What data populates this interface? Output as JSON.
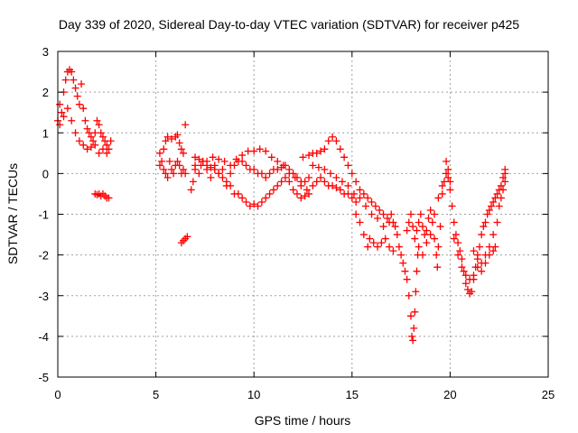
{
  "chart_data": {
    "type": "scatter",
    "title": "Day 339 of 2020, Sidereal Day-to-day VTEC variation (SDTVAR) for receiver p425",
    "xlabel": "GPS time / hours",
    "ylabel": "SDTVAR / TECUs",
    "xlim": [
      0,
      25
    ],
    "ylim": [
      -5,
      3
    ],
    "xticks": [
      0,
      5,
      10,
      15,
      20,
      25
    ],
    "yticks": [
      -5,
      -4,
      -3,
      -2,
      -1,
      0,
      1,
      2,
      3
    ],
    "grid": true,
    "marker": "+",
    "series": [
      {
        "name": "SDTVAR",
        "color": "#ff0000",
        "points": [
          [
            0.0,
            1.3
          ],
          [
            0.1,
            1.7
          ],
          [
            0.2,
            1.5
          ],
          [
            0.3,
            2.0
          ],
          [
            0.4,
            2.3
          ],
          [
            0.5,
            2.5
          ],
          [
            0.6,
            2.55
          ],
          [
            0.7,
            2.5
          ],
          [
            0.8,
            2.3
          ],
          [
            0.9,
            2.1
          ],
          [
            1.0,
            1.9
          ],
          [
            1.1,
            1.7
          ],
          [
            1.2,
            2.2
          ],
          [
            1.3,
            1.6
          ],
          [
            1.4,
            1.3
          ],
          [
            1.5,
            1.1
          ],
          [
            1.6,
            1.0
          ],
          [
            1.7,
            0.9
          ],
          [
            1.8,
            0.8
          ],
          [
            1.9,
            0.7
          ],
          [
            2.0,
            1.3
          ],
          [
            2.1,
            1.2
          ],
          [
            2.2,
            1.0
          ],
          [
            2.3,
            0.9
          ],
          [
            2.4,
            0.8
          ],
          [
            2.5,
            0.7
          ],
          [
            2.6,
            0.6
          ],
          [
            2.7,
            0.8
          ],
          [
            0.1,
            1.2
          ],
          [
            0.3,
            1.4
          ],
          [
            0.5,
            1.6
          ],
          [
            0.7,
            1.3
          ],
          [
            0.9,
            1.0
          ],
          [
            1.1,
            0.8
          ],
          [
            1.3,
            0.7
          ],
          [
            1.5,
            0.6
          ],
          [
            1.7,
            0.65
          ],
          [
            1.9,
            1.0
          ],
          [
            2.1,
            0.5
          ],
          [
            2.3,
            0.6
          ],
          [
            2.5,
            0.5
          ],
          [
            1.9,
            -0.5
          ],
          [
            2.0,
            -0.52
          ],
          [
            2.1,
            -0.5
          ],
          [
            2.2,
            -0.55
          ],
          [
            2.3,
            -0.5
          ],
          [
            2.4,
            -0.55
          ],
          [
            2.5,
            -0.6
          ],
          [
            2.6,
            -0.6
          ],
          [
            5.2,
            0.2
          ],
          [
            5.3,
            0.3
          ],
          [
            5.4,
            0.1
          ],
          [
            5.5,
            0.0
          ],
          [
            5.6,
            -0.1
          ],
          [
            5.7,
            0.3
          ],
          [
            5.8,
            0.1
          ],
          [
            5.9,
            0.0
          ],
          [
            6.0,
            0.2
          ],
          [
            6.1,
            0.3
          ],
          [
            6.2,
            0.2
          ],
          [
            6.3,
            0.0
          ],
          [
            6.4,
            0.1
          ],
          [
            6.5,
            0.0
          ],
          [
            5.2,
            0.5
          ],
          [
            5.4,
            0.6
          ],
          [
            5.5,
            0.8
          ],
          [
            5.6,
            0.9
          ],
          [
            5.8,
            0.85
          ],
          [
            6.0,
            0.9
          ],
          [
            6.1,
            0.95
          ],
          [
            6.2,
            0.75
          ],
          [
            6.3,
            0.6
          ],
          [
            6.4,
            0.5
          ],
          [
            6.5,
            1.2
          ],
          [
            6.3,
            -1.7
          ],
          [
            6.4,
            -1.65
          ],
          [
            6.5,
            -1.6
          ],
          [
            6.6,
            -1.55
          ],
          [
            6.8,
            -0.4
          ],
          [
            6.9,
            -0.2
          ],
          [
            7.0,
            0.2
          ],
          [
            7.2,
            0.0
          ],
          [
            7.4,
            0.3
          ],
          [
            7.6,
            0.1
          ],
          [
            7.8,
            -0.1
          ],
          [
            8.0,
            0.2
          ],
          [
            8.2,
            0.0
          ],
          [
            8.4,
            0.1
          ],
          [
            8.6,
            -0.2
          ],
          [
            8.8,
            -0.3
          ],
          [
            9.0,
            -0.5
          ],
          [
            9.2,
            -0.5
          ],
          [
            9.4,
            -0.6
          ],
          [
            9.6,
            -0.7
          ],
          [
            9.8,
            -0.8
          ],
          [
            10.0,
            -0.75
          ],
          [
            10.2,
            -0.8
          ],
          [
            10.4,
            -0.7
          ],
          [
            10.6,
            -0.6
          ],
          [
            10.8,
            -0.5
          ],
          [
            11.0,
            -0.4
          ],
          [
            11.2,
            -0.3
          ],
          [
            11.4,
            -0.2
          ],
          [
            11.6,
            -0.1
          ],
          [
            11.8,
            -0.2
          ],
          [
            12.0,
            -0.4
          ],
          [
            12.2,
            -0.5
          ],
          [
            12.4,
            -0.6
          ],
          [
            12.6,
            -0.55
          ],
          [
            12.8,
            -0.5
          ],
          [
            13.0,
            -0.3
          ],
          [
            13.2,
            -0.2
          ],
          [
            13.4,
            -0.1
          ],
          [
            13.6,
            -0.2
          ],
          [
            13.8,
            -0.3
          ],
          [
            14.0,
            -0.3
          ],
          [
            14.2,
            -0.35
          ],
          [
            14.4,
            -0.4
          ],
          [
            14.6,
            -0.5
          ],
          [
            14.8,
            -0.5
          ],
          [
            15.0,
            -0.6
          ],
          [
            15.2,
            -0.7
          ],
          [
            7.0,
            0.4
          ],
          [
            7.2,
            0.35
          ],
          [
            7.4,
            0.3
          ],
          [
            7.6,
            0.2
          ],
          [
            7.8,
            0.15
          ],
          [
            8.0,
            0.1
          ],
          [
            8.2,
            0.0
          ],
          [
            8.4,
            -0.1
          ],
          [
            8.6,
            -0.3
          ],
          [
            8.8,
            0.0
          ],
          [
            9.0,
            0.2
          ],
          [
            9.2,
            0.3
          ],
          [
            9.4,
            0.3
          ],
          [
            9.6,
            0.2
          ],
          [
            9.8,
            0.1
          ],
          [
            10.0,
            0.1
          ],
          [
            10.2,
            0.0
          ],
          [
            10.4,
            0.0
          ],
          [
            10.6,
            -0.1
          ],
          [
            10.8,
            0.0
          ],
          [
            11.0,
            0.1
          ],
          [
            11.2,
            0.1
          ],
          [
            11.4,
            0.15
          ],
          [
            11.6,
            0.2
          ],
          [
            11.8,
            0.1
          ],
          [
            12.0,
            0.0
          ],
          [
            12.2,
            -0.1
          ],
          [
            12.4,
            -0.2
          ],
          [
            12.6,
            -0.2
          ],
          [
            12.8,
            -0.1
          ],
          [
            7.0,
            0.1
          ],
          [
            7.3,
            0.2
          ],
          [
            7.6,
            0.3
          ],
          [
            7.9,
            0.4
          ],
          [
            8.2,
            0.35
          ],
          [
            8.5,
            0.3
          ],
          [
            8.8,
            0.2
          ],
          [
            9.1,
            0.35
          ],
          [
            9.4,
            0.45
          ],
          [
            9.7,
            0.55
          ],
          [
            10.0,
            0.55
          ],
          [
            10.3,
            0.6
          ],
          [
            10.6,
            0.55
          ],
          [
            10.9,
            0.4
          ],
          [
            11.2,
            0.3
          ],
          [
            11.5,
            0.2
          ],
          [
            11.8,
            0.0
          ],
          [
            12.1,
            -0.1
          ],
          [
            12.4,
            -0.3
          ],
          [
            12.7,
            -0.4
          ],
          [
            12.5,
            0.4
          ],
          [
            12.8,
            0.45
          ],
          [
            13.0,
            0.5
          ],
          [
            13.2,
            0.5
          ],
          [
            13.4,
            0.55
          ],
          [
            13.6,
            0.6
          ],
          [
            13.8,
            0.8
          ],
          [
            14.0,
            0.9
          ],
          [
            14.2,
            0.8
          ],
          [
            14.4,
            0.6
          ],
          [
            14.6,
            0.4
          ],
          [
            14.8,
            0.2
          ],
          [
            15.0,
            0.0
          ],
          [
            15.2,
            -0.2
          ],
          [
            15.4,
            -0.4
          ],
          [
            15.6,
            -0.5
          ],
          [
            15.8,
            -0.6
          ],
          [
            16.0,
            -0.7
          ],
          [
            16.2,
            -0.8
          ],
          [
            16.4,
            -0.9
          ],
          [
            16.6,
            -1.0
          ],
          [
            16.8,
            -1.1
          ],
          [
            13.0,
            0.2
          ],
          [
            13.3,
            0.15
          ],
          [
            13.6,
            0.1
          ],
          [
            13.9,
            0.0
          ],
          [
            14.2,
            -0.1
          ],
          [
            14.5,
            -0.2
          ],
          [
            14.8,
            -0.3
          ],
          [
            15.1,
            -0.5
          ],
          [
            15.4,
            -0.6
          ],
          [
            15.7,
            -0.8
          ],
          [
            16.0,
            -1.0
          ],
          [
            16.3,
            -1.1
          ],
          [
            16.6,
            -1.3
          ],
          [
            16.9,
            -1.2
          ],
          [
            15.2,
            -1.0
          ],
          [
            15.4,
            -1.2
          ],
          [
            15.6,
            -1.5
          ],
          [
            15.8,
            -1.8
          ],
          [
            15.9,
            -1.6
          ],
          [
            16.1,
            -1.7
          ],
          [
            16.3,
            -1.8
          ],
          [
            16.5,
            -1.7
          ],
          [
            16.7,
            -1.6
          ],
          [
            16.9,
            -1.8
          ],
          [
            17.1,
            -1.9
          ],
          [
            17.0,
            -1.0
          ],
          [
            17.1,
            -1.2
          ],
          [
            17.2,
            -1.3
          ],
          [
            17.3,
            -1.5
          ],
          [
            17.4,
            -1.8
          ],
          [
            17.5,
            -2.0
          ],
          [
            17.6,
            -2.2
          ],
          [
            17.7,
            -2.4
          ],
          [
            17.8,
            -2.6
          ],
          [
            17.9,
            -3.0
          ],
          [
            18.0,
            -3.5
          ],
          [
            18.05,
            -4.0
          ],
          [
            18.1,
            -4.1
          ],
          [
            18.15,
            -3.8
          ],
          [
            18.2,
            -3.4
          ],
          [
            18.25,
            -2.9
          ],
          [
            18.3,
            -2.4
          ],
          [
            18.35,
            -2.0
          ],
          [
            17.8,
            -1.4
          ],
          [
            17.9,
            -1.2
          ],
          [
            18.0,
            -1.0
          ],
          [
            18.1,
            -1.3
          ],
          [
            18.2,
            -1.6
          ],
          [
            18.3,
            -1.4
          ],
          [
            18.4,
            -1.2
          ],
          [
            18.5,
            -1.0
          ],
          [
            18.6,
            -1.3
          ],
          [
            18.7,
            -1.5
          ],
          [
            18.8,
            -1.4
          ],
          [
            18.9,
            -1.1
          ],
          [
            19.0,
            -0.9
          ],
          [
            19.1,
            -1.2
          ],
          [
            19.2,
            -1.6
          ],
          [
            19.3,
            -2.0
          ],
          [
            19.35,
            -2.3
          ],
          [
            19.4,
            -1.8
          ],
          [
            19.5,
            -1.3
          ],
          [
            19.6,
            -0.5
          ],
          [
            19.7,
            -0.2
          ],
          [
            19.8,
            0.0
          ],
          [
            19.9,
            -0.1
          ],
          [
            20.0,
            -0.4
          ],
          [
            20.1,
            -0.8
          ],
          [
            20.2,
            -1.2
          ],
          [
            20.3,
            -1.5
          ],
          [
            20.4,
            -1.7
          ],
          [
            20.5,
            -1.9
          ],
          [
            20.6,
            -2.1
          ],
          [
            20.7,
            -2.4
          ],
          [
            20.8,
            -2.7
          ],
          [
            20.9,
            -2.85
          ],
          [
            21.0,
            -2.95
          ],
          [
            21.1,
            -2.9
          ],
          [
            21.2,
            -2.6
          ],
          [
            21.3,
            -2.3
          ],
          [
            21.4,
            -2.0
          ],
          [
            21.5,
            -1.8
          ],
          [
            21.6,
            -1.5
          ],
          [
            21.7,
            -1.3
          ],
          [
            21.8,
            -1.2
          ],
          [
            21.9,
            -1.0
          ],
          [
            22.0,
            -0.9
          ],
          [
            22.1,
            -0.8
          ],
          [
            22.2,
            -0.7
          ],
          [
            22.3,
            -0.6
          ],
          [
            22.4,
            -0.5
          ],
          [
            22.5,
            -0.4
          ],
          [
            22.6,
            -0.3
          ],
          [
            22.7,
            -0.1
          ],
          [
            22.8,
            0.1
          ],
          [
            18.4,
            -1.8
          ],
          [
            18.6,
            -2.0
          ],
          [
            18.8,
            -1.7
          ],
          [
            19.0,
            -1.5
          ],
          [
            19.2,
            -1.0
          ],
          [
            19.4,
            -0.6
          ],
          [
            19.6,
            -0.3
          ],
          [
            19.8,
            0.3
          ],
          [
            19.9,
            0.1
          ],
          [
            20.0,
            -0.2
          ],
          [
            20.2,
            -1.6
          ],
          [
            20.4,
            -2.0
          ],
          [
            20.6,
            -2.3
          ],
          [
            20.8,
            -2.5
          ],
          [
            21.0,
            -2.6
          ],
          [
            21.2,
            -2.5
          ],
          [
            21.4,
            -2.3
          ],
          [
            21.6,
            -2.2
          ],
          [
            21.8,
            -2.0
          ],
          [
            22.0,
            -1.8
          ],
          [
            22.2,
            -1.5
          ],
          [
            22.4,
            -1.2
          ],
          [
            22.6,
            -0.6
          ],
          [
            22.8,
            -0.2
          ],
          [
            21.2,
            -1.9
          ],
          [
            21.4,
            -2.1
          ],
          [
            21.6,
            -2.4
          ],
          [
            21.8,
            -2.2
          ],
          [
            22.0,
            -2.0
          ],
          [
            22.2,
            -1.9
          ],
          [
            22.3,
            -1.8
          ],
          [
            22.5,
            -0.8
          ],
          [
            22.7,
            -0.4
          ],
          [
            22.8,
            0.0
          ]
        ]
      }
    ]
  }
}
